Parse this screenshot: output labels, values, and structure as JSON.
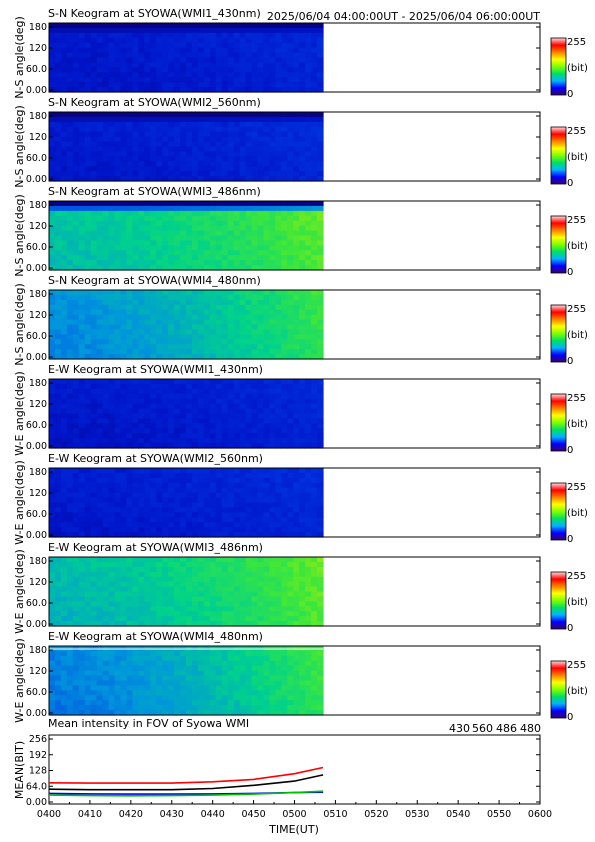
{
  "header": {
    "time_range": "2025/06/04 04:00:00UT - 2025/06/04 06:00:00UT"
  },
  "colors": {
    "bar_gradient": [
      "#3a006e",
      "#0000ff",
      "#00b4ff",
      "#00e060",
      "#7fff00",
      "#ffff00",
      "#ff8000",
      "#ff0000",
      "#ffdada"
    ],
    "wl430": "#0000ff",
    "wl560": "#00c000",
    "wl486": "#ff0000",
    "wl480": "#000000"
  },
  "keograms": [
    {
      "title": "S-N Keogram at SYOWA(WMI1_430nm)",
      "ylabel": "N-S angle(deg)",
      "yticks": [
        "0.00",
        "60.0",
        "120",
        "180"
      ],
      "cb_max": "255",
      "cb_unit": "(bit)",
      "cb_min": "0",
      "intensity_start": 0.14,
      "intensity_end": 0.19,
      "top_edge": "dark"
    },
    {
      "title": "S-N Keogram at SYOWA(WMI2_560nm)",
      "ylabel": "N-S angle(deg)",
      "yticks": [
        "0.00",
        "60.0",
        "120",
        "180"
      ],
      "cb_max": "255",
      "cb_unit": "(bit)",
      "cb_min": "0",
      "intensity_start": 0.15,
      "intensity_end": 0.2,
      "top_edge": "dark"
    },
    {
      "title": "S-N Keogram at SYOWA(WMI3_486nm)",
      "ylabel": "N-S angle(deg)",
      "yticks": [
        "0.00",
        "60.0",
        "120",
        "180"
      ],
      "cb_max": "255",
      "cb_unit": "(bit)",
      "cb_min": "0",
      "intensity_start": 0.48,
      "intensity_end": 0.64,
      "top_edge": "dark"
    },
    {
      "title": "S-N Keogram at SYOWA(WMI4_480nm)",
      "ylabel": "N-S angle(deg)",
      "yticks": [
        "0.00",
        "60.0",
        "120",
        "180"
      ],
      "cb_max": "255",
      "cb_unit": "(bit)",
      "cb_min": "0",
      "intensity_start": 0.38,
      "intensity_end": 0.6,
      "top_edge": "none"
    },
    {
      "title": "E-W Keogram at SYOWA(WMI1_430nm)",
      "ylabel": "W-E angle(deg)",
      "yticks": [
        "0.00",
        "60.0",
        "120",
        "180"
      ],
      "cb_max": "255",
      "cb_unit": "(bit)",
      "cb_min": "0",
      "intensity_start": 0.14,
      "intensity_end": 0.19,
      "top_edge": "none"
    },
    {
      "title": "E-W Keogram at SYOWA(WMI2_560nm)",
      "ylabel": "W-E angle(deg)",
      "yticks": [
        "0.00",
        "60.0",
        "120",
        "180"
      ],
      "cb_max": "255",
      "cb_unit": "(bit)",
      "cb_min": "0",
      "intensity_start": 0.15,
      "intensity_end": 0.2,
      "top_edge": "none"
    },
    {
      "title": "E-W Keogram at SYOWA(WMI3_486nm)",
      "ylabel": "W-E angle(deg)",
      "yticks": [
        "0.00",
        "60.0",
        "120",
        "180"
      ],
      "cb_max": "255",
      "cb_unit": "(bit)",
      "cb_min": "0",
      "intensity_start": 0.46,
      "intensity_end": 0.64,
      "top_edge": "none"
    },
    {
      "title": "E-W Keogram at SYOWA(WMI4_480nm)",
      "ylabel": "W-E angle(deg)",
      "yticks": [
        "0.00",
        "60.0",
        "120",
        "180"
      ],
      "cb_max": "255",
      "cb_unit": "(bit)",
      "cb_min": "0",
      "intensity_start": 0.36,
      "intensity_end": 0.6,
      "top_edge": "line"
    }
  ],
  "chart_data": {
    "type": "line",
    "title": "Mean intensity in FOV of Syowa WMI",
    "xlabel": "TIME(UT)",
    "ylabel": "MEAN(BIT)",
    "xlim": [
      0,
      120
    ],
    "ylim": [
      0,
      256
    ],
    "data_end_minute": 67,
    "x_ticks": [
      "0400",
      "0410",
      "0420",
      "0430",
      "0440",
      "0450",
      "0500",
      "0510",
      "0520",
      "0530",
      "0540",
      "0550",
      "0600"
    ],
    "y_ticks": [
      "0.00",
      "64.0",
      "128",
      "192",
      "256"
    ],
    "x": [
      0,
      10,
      20,
      30,
      40,
      50,
      60,
      67
    ],
    "series": [
      {
        "name": "430",
        "values": [
          35,
          33,
          32,
          32,
          33,
          35,
          38,
          40
        ]
      },
      {
        "name": "560",
        "values": [
          28,
          26,
          25,
          26,
          28,
          32,
          38,
          44
        ]
      },
      {
        "name": "486",
        "values": [
          78,
          77,
          77,
          77,
          82,
          92,
          115,
          140
        ]
      },
      {
        "name": "480",
        "values": [
          52,
          50,
          50,
          50,
          55,
          68,
          85,
          110
        ]
      }
    ]
  }
}
